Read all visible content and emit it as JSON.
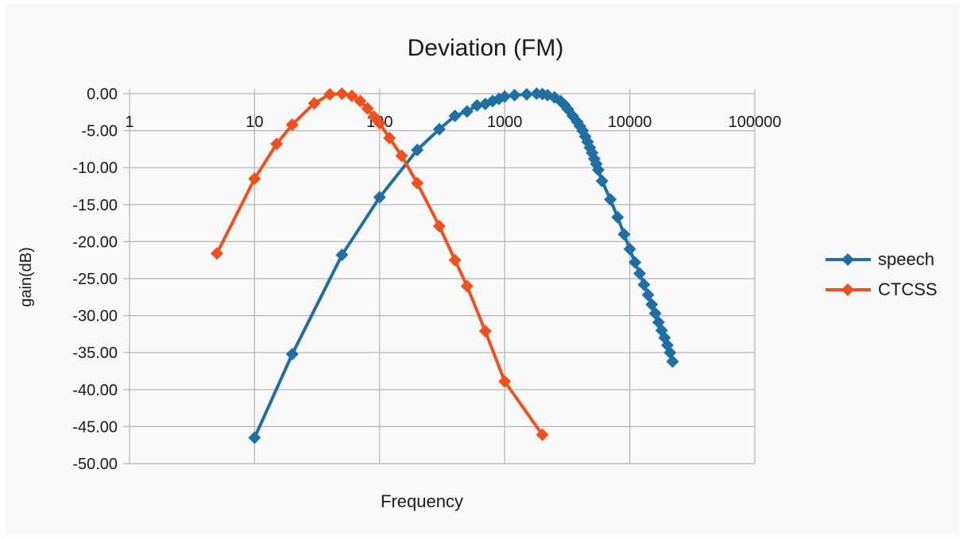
{
  "chart_data": {
    "type": "scatter",
    "title": "Deviation (FM)",
    "xlabel": "Frequency",
    "ylabel": "gain(dB)",
    "x_scale": "log",
    "xlim": [
      1,
      100000
    ],
    "ylim": [
      -50,
      0
    ],
    "x_ticks": [
      "1",
      "10",
      "100",
      "1000",
      "10000",
      "100000"
    ],
    "y_ticks": [
      "0.00",
      "-5.00",
      "-10.00",
      "-15.00",
      "-20.00",
      "-25.00",
      "-30.00",
      "-35.00",
      "-40.00",
      "-45.00",
      "-50.00"
    ],
    "grid": true,
    "legend_position": "right",
    "series": [
      {
        "name": "speech",
        "color": "#1f6fa4",
        "marker": "diamond",
        "points": [
          [
            10,
            -46.5
          ],
          [
            20,
            -35.2
          ],
          [
            50,
            -21.8
          ],
          [
            100,
            -14.0
          ],
          [
            200,
            -7.6
          ],
          [
            300,
            -4.8
          ],
          [
            400,
            -3.0
          ],
          [
            500,
            -2.4
          ],
          [
            600,
            -1.6
          ],
          [
            700,
            -1.4
          ],
          [
            800,
            -1.0
          ],
          [
            900,
            -0.7
          ],
          [
            1000,
            -0.4
          ],
          [
            1200,
            -0.2
          ],
          [
            1500,
            -0.1
          ],
          [
            1800,
            0.0
          ],
          [
            2000,
            -0.05
          ],
          [
            2200,
            -0.2
          ],
          [
            2500,
            -0.5
          ],
          [
            2800,
            -1.0
          ],
          [
            3000,
            -1.5
          ],
          [
            3200,
            -2.1
          ],
          [
            3500,
            -3.0
          ],
          [
            3800,
            -3.8
          ],
          [
            4000,
            -4.4
          ],
          [
            4200,
            -5.0
          ],
          [
            4400,
            -5.8
          ],
          [
            4600,
            -6.5
          ],
          [
            4800,
            -7.3
          ],
          [
            5000,
            -8.0
          ],
          [
            5200,
            -8.8
          ],
          [
            5400,
            -9.5
          ],
          [
            5600,
            -10.3
          ],
          [
            6000,
            -11.8
          ],
          [
            7000,
            -14.3
          ],
          [
            8000,
            -16.7
          ],
          [
            9000,
            -19.0
          ],
          [
            10000,
            -21.0
          ],
          [
            11000,
            -22.8
          ],
          [
            12000,
            -24.3
          ],
          [
            13000,
            -25.8
          ],
          [
            14000,
            -27.2
          ],
          [
            15000,
            -28.5
          ],
          [
            16000,
            -29.7
          ],
          [
            17000,
            -30.9
          ],
          [
            18000,
            -32.0
          ],
          [
            19000,
            -33.0
          ],
          [
            20000,
            -34.0
          ],
          [
            21000,
            -35.0
          ],
          [
            22000,
            -36.2
          ]
        ]
      },
      {
        "name": "CTCSS",
        "color": "#f0501e",
        "marker": "diamond",
        "points": [
          [
            5,
            -21.6
          ],
          [
            10,
            -11.5
          ],
          [
            15,
            -6.8
          ],
          [
            20,
            -4.2
          ],
          [
            30,
            -1.3
          ],
          [
            40,
            -0.1
          ],
          [
            50,
            0.0
          ],
          [
            60,
            -0.3
          ],
          [
            70,
            -1.0
          ],
          [
            80,
            -2.0
          ],
          [
            90,
            -3.1
          ],
          [
            100,
            -4.0
          ],
          [
            120,
            -6.0
          ],
          [
            150,
            -8.4
          ],
          [
            200,
            -12.1
          ],
          [
            300,
            -17.9
          ],
          [
            400,
            -22.5
          ],
          [
            500,
            -26.0
          ],
          [
            700,
            -32.1
          ],
          [
            1000,
            -38.9
          ],
          [
            2000,
            -46.1
          ]
        ]
      }
    ]
  }
}
